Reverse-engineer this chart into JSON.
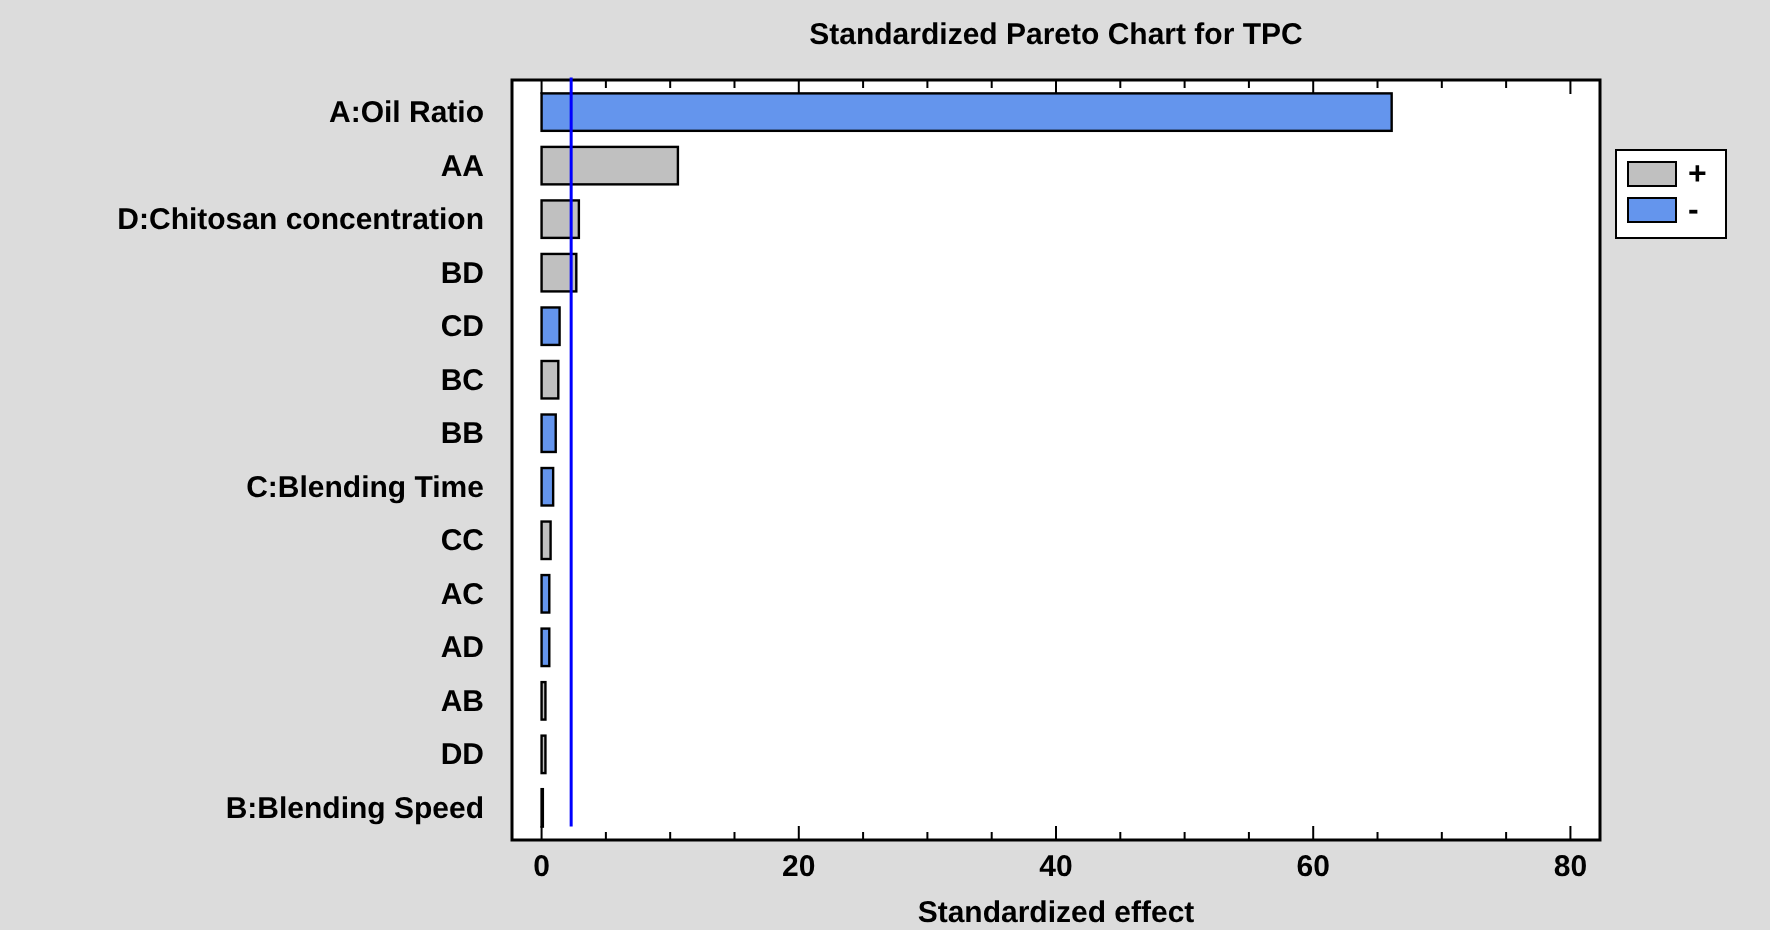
{
  "chart_data": {
    "type": "bar",
    "orientation": "horizontal",
    "title": "Standardized Pareto Chart for TPC",
    "xlabel": "Standardized effect",
    "categories": [
      "A:Oil Ratio",
      "AA",
      "D:Chitosan concentration",
      "BD",
      "CD",
      "BC",
      "BB",
      "C:Blending Time",
      "CC",
      "AC",
      "AD",
      "AB",
      "DD",
      "B:Blending Speed"
    ],
    "series": [
      {
        "name": "+",
        "color": "#c0c0c0",
        "values": [
          null,
          10.6,
          2.9,
          2.7,
          null,
          1.3,
          null,
          null,
          0.7,
          null,
          null,
          0.3,
          0.3,
          0.1
        ]
      },
      {
        "name": "-",
        "color": "#6495ed",
        "values": [
          66.1,
          null,
          null,
          null,
          1.4,
          null,
          1.1,
          0.9,
          null,
          0.6,
          0.6,
          null,
          null,
          null
        ]
      }
    ],
    "xlim": [
      -2.3,
      82.3
    ],
    "xticks": [
      0,
      {
        "value": 5,
        "label": null
      },
      {
        "value": 10,
        "label": null
      },
      {
        "value": 15,
        "label": null
      },
      20,
      {
        "value": 25,
        "label": null
      },
      {
        "value": 30,
        "label": null
      },
      {
        "value": 35,
        "label": null
      },
      40,
      {
        "value": 45,
        "label": null
      },
      {
        "value": 50,
        "label": null
      },
      {
        "value": 55,
        "label": null
      },
      60,
      {
        "value": 65,
        "label": null
      },
      {
        "value": 70,
        "label": null
      },
      {
        "value": 75,
        "label": null
      },
      80
    ],
    "ref_lines": [
      {
        "axis": "x",
        "value": 2.3,
        "color": "#0000ff"
      }
    ],
    "legend": "right",
    "grid": false
  }
}
